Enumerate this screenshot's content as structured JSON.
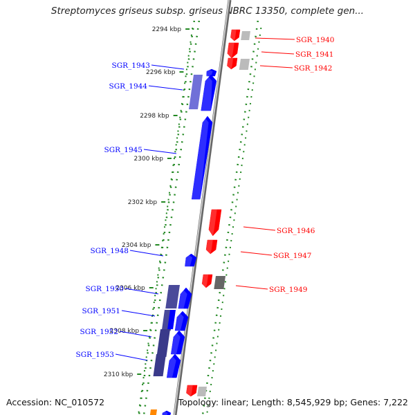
{
  "title": "Streptomyces griseus subsp. griseus NBRC 13350, complete gen...",
  "footer": {
    "accession": "Accession: NC_010572",
    "summary": "Topology: linear; Length: 8,545,929 bp; Genes: 7,222"
  },
  "colors": {
    "forward_strand": "#0000ff",
    "reverse_strand": "#ff0000",
    "backbone": "#999999",
    "ticks": "#228822",
    "dark_gene": "#3a3a8a",
    "grey_gene": "#bbbbbb"
  },
  "kbp_ticks": [
    "2294 kbp",
    "2296 kbp",
    "2298 kbp",
    "2300 kbp",
    "2302 kbp",
    "2304 kbp",
    "2306 kbp",
    "2308 kbp",
    "2310 kbp"
  ],
  "forward_genes": [
    "SGR_1943",
    "SGR_1944",
    "SGR_1945",
    "SGR_1948",
    "SGR_1950",
    "SGR_1951",
    "SGR_1952",
    "SGR_1953"
  ],
  "reverse_genes": [
    "SGR_1940",
    "SGR_1941",
    "SGR_1942",
    "SGR_1946",
    "SGR_1947",
    "SGR_1949"
  ]
}
